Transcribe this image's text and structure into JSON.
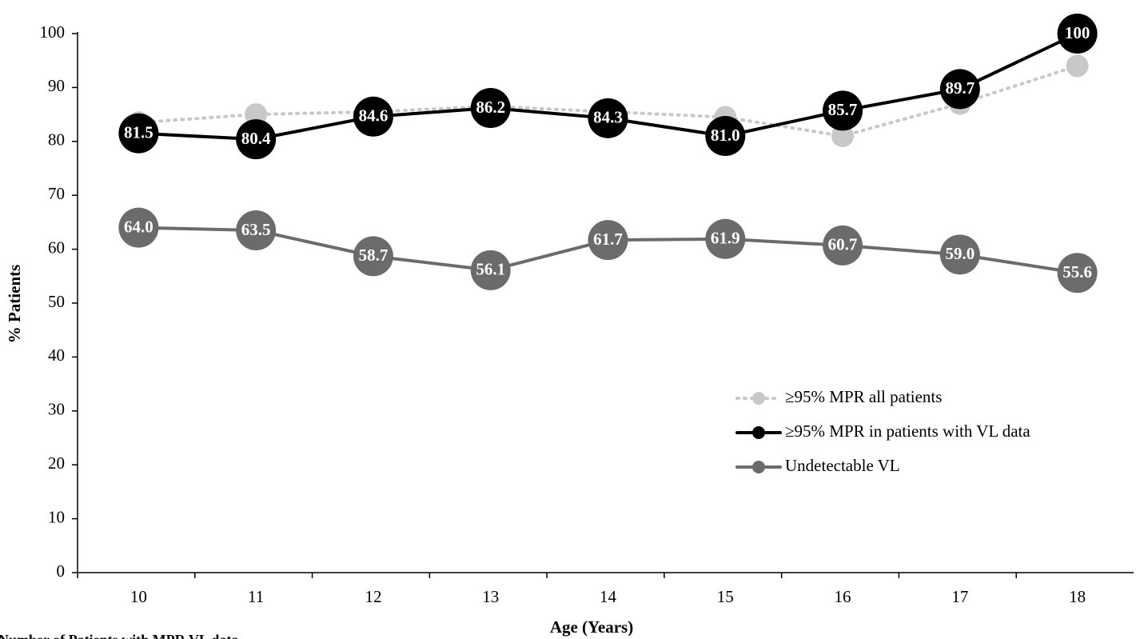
{
  "chart_data": {
    "type": "line",
    "x_label": "Age (Years)",
    "y_label": "% Patients",
    "footnote": "Number of Patients with MPR VL data",
    "categories": [
      "10",
      "11",
      "12",
      "13",
      "14",
      "15",
      "16",
      "17",
      "18"
    ],
    "series": [
      {
        "name": "≥95% MPR all patients",
        "color": "#c8c8c8",
        "linestyle": "dotted",
        "values": [
          83.5,
          85,
          85.5,
          86.5,
          85.5,
          84.5,
          81,
          87,
          94
        ]
      },
      {
        "name": "≥95% MPR in patients with VL data",
        "color": "#000000",
        "linestyle": "solid",
        "values": [
          81.5,
          80.4,
          84.6,
          86.2,
          84.3,
          81,
          85.7,
          89.7,
          100
        ],
        "value_labels": [
          "81.5",
          "80.4",
          "84.6",
          "86.2",
          "84.3",
          "81.0",
          "85.7",
          "89.7",
          "100"
        ]
      },
      {
        "name": "Undetectable VL",
        "color": "#6b6b6b",
        "linestyle": "solid",
        "values": [
          64,
          63.5,
          58.7,
          56.1,
          61.7,
          61.9,
          60.7,
          59,
          55.6
        ],
        "value_labels": [
          "64.0",
          "63.5",
          "58.7",
          "56.1",
          "61.7",
          "61.9",
          "60.7",
          "59.0",
          "55.6"
        ]
      }
    ],
    "ylim": [
      0,
      100
    ],
    "yticks": [
      0,
      10,
      20,
      30,
      40,
      50,
      60,
      70,
      80,
      90,
      100
    ],
    "grid": false,
    "legend": "lower right"
  }
}
